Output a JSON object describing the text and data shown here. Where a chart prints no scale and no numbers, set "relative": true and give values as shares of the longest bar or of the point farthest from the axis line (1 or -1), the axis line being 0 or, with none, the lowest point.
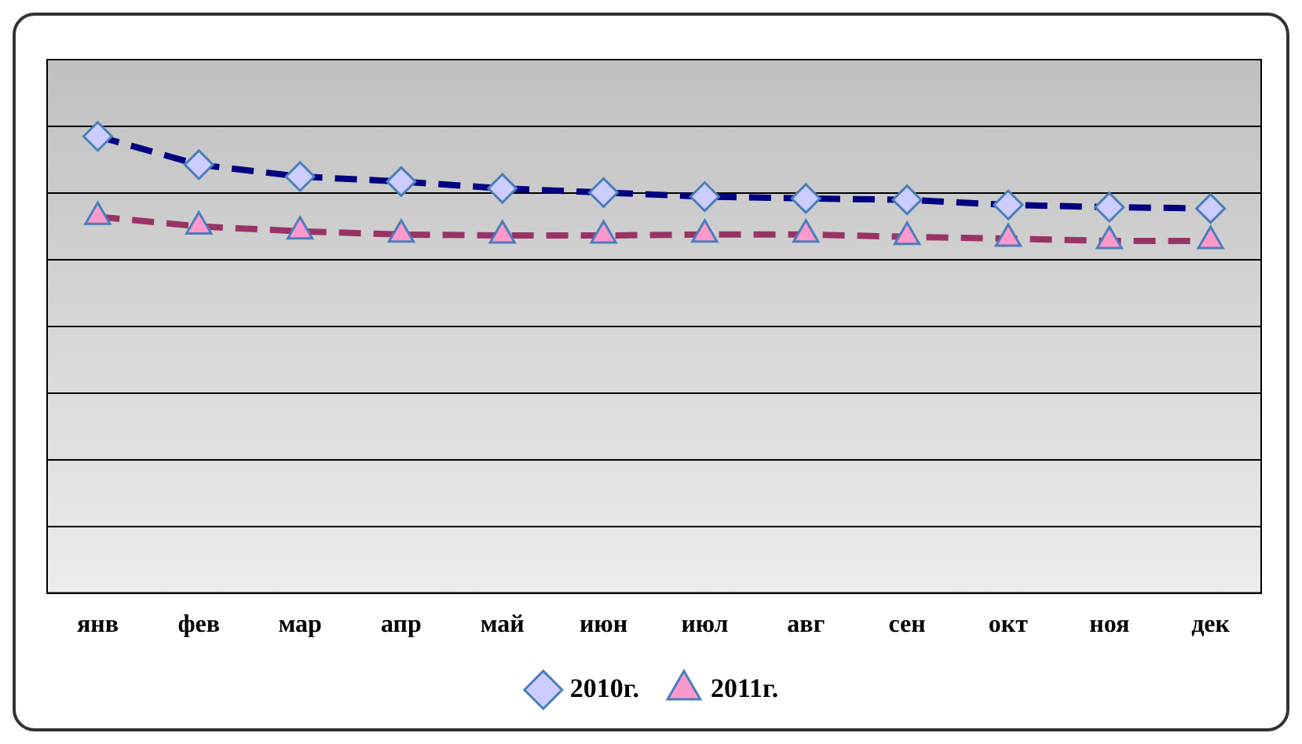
{
  "chart_data": {
    "type": "line",
    "relative": true,
    "categories": [
      "янв",
      "фев",
      "мар",
      "апр",
      "май",
      "июн",
      "июл",
      "авг",
      "сен",
      "окт",
      "ноя",
      "дек"
    ],
    "series": [
      {
        "name": "2010г.",
        "color": "#000080",
        "marker": "diamond",
        "values": [
          1,
          0.938,
          0.912,
          0.901,
          0.886,
          0.877,
          0.868,
          0.864,
          0.861,
          0.85,
          0.845,
          0.842
        ]
      },
      {
        "name": "2011г.",
        "color": "#993366",
        "marker": "triangle",
        "values": [
          0.824,
          0.803,
          0.792,
          0.785,
          0.783,
          0.783,
          0.785,
          0.785,
          0.78,
          0.776,
          0.771,
          0.771
        ]
      }
    ],
    "grid": "y",
    "legend": "bottom",
    "line_style": "dashed"
  }
}
